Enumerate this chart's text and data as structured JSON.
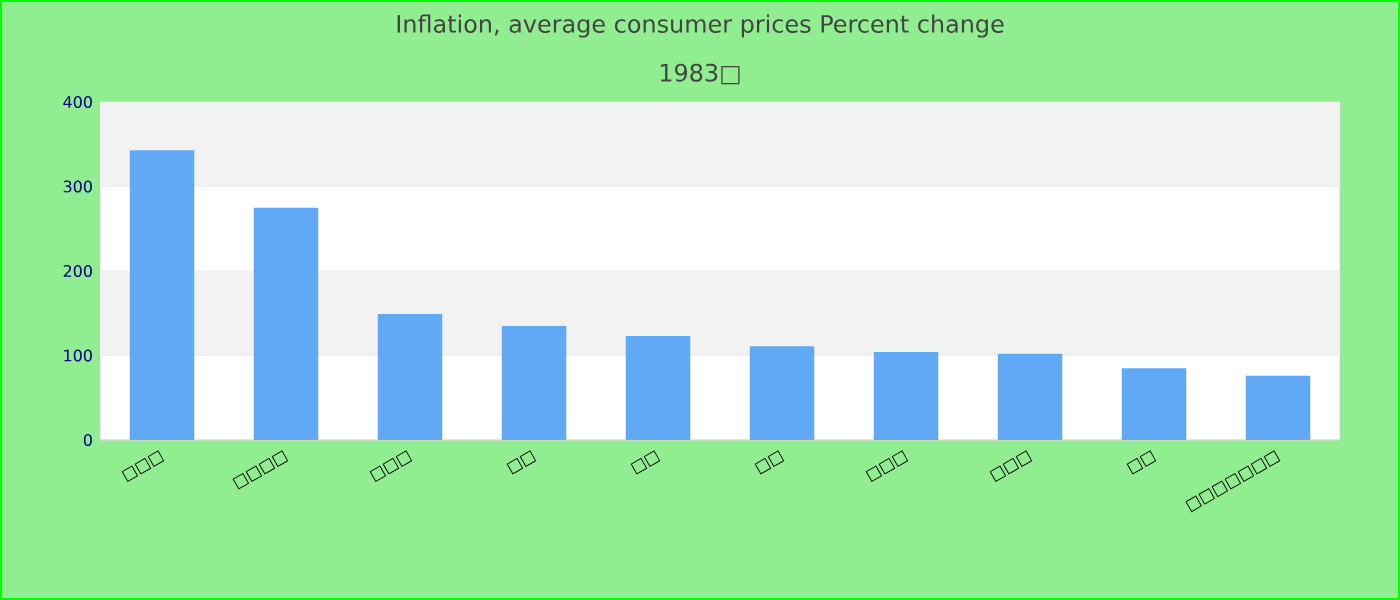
{
  "chart_data": {
    "type": "bar",
    "title": "Inflation, average consumer prices  Percent change",
    "subtitle": "1983□",
    "categories": [
      "□□□",
      "□□□□",
      "□□□",
      "□□",
      "□□",
      "□□",
      "□□□",
      "□□□",
      "□□",
      "□□□□□□□"
    ],
    "values": [
      343,
      275,
      149,
      135,
      123,
      111,
      104,
      102,
      85,
      76
    ],
    "color": "#62a9f5",
    "ylim": [
      0,
      400
    ],
    "yticks": [
      0,
      100,
      200,
      300,
      400
    ],
    "grid": "y"
  }
}
